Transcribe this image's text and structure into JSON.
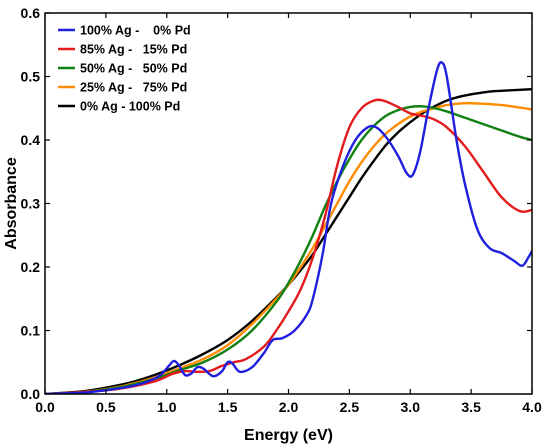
{
  "chart_data": {
    "type": "line",
    "title": "",
    "xlabel": "Energy (eV)",
    "ylabel": "Absorbance",
    "xlim": [
      0.0,
      4.0
    ],
    "ylim": [
      0.0,
      0.6
    ],
    "xticks": [
      "0.0",
      "0.5",
      "1.0",
      "1.5",
      "2.0",
      "2.5",
      "3.0",
      "3.5",
      "4.0"
    ],
    "yticks": [
      "0.0",
      "0.1",
      "0.2",
      "0.3",
      "0.4",
      "0.5",
      "0.6"
    ],
    "grid": false,
    "legend_position": "top-left",
    "series": [
      {
        "name": "100% Ag -    0% Pd",
        "color": "#1f1fdf",
        "points": [
          [
            0,
            0
          ],
          [
            0.3,
            0.002
          ],
          [
            0.5,
            0.006
          ],
          [
            0.7,
            0.012
          ],
          [
            0.85,
            0.02
          ],
          [
            0.95,
            0.03
          ],
          [
            1.02,
            0.045
          ],
          [
            1.06,
            0.052
          ],
          [
            1.1,
            0.045
          ],
          [
            1.15,
            0.03
          ],
          [
            1.2,
            0.032
          ],
          [
            1.25,
            0.042
          ],
          [
            1.3,
            0.04
          ],
          [
            1.38,
            0.028
          ],
          [
            1.45,
            0.035
          ],
          [
            1.5,
            0.05
          ],
          [
            1.54,
            0.048
          ],
          [
            1.6,
            0.035
          ],
          [
            1.7,
            0.042
          ],
          [
            1.8,
            0.065
          ],
          [
            1.87,
            0.085
          ],
          [
            1.95,
            0.088
          ],
          [
            2.05,
            0.1
          ],
          [
            2.15,
            0.125
          ],
          [
            2.2,
            0.15
          ],
          [
            2.28,
            0.22
          ],
          [
            2.35,
            0.3
          ],
          [
            2.45,
            0.36
          ],
          [
            2.55,
            0.4
          ],
          [
            2.65,
            0.42
          ],
          [
            2.72,
            0.42
          ],
          [
            2.8,
            0.405
          ],
          [
            2.9,
            0.375
          ],
          [
            2.97,
            0.348
          ],
          [
            3.02,
            0.345
          ],
          [
            3.08,
            0.38
          ],
          [
            3.15,
            0.45
          ],
          [
            3.22,
            0.51
          ],
          [
            3.26,
            0.522
          ],
          [
            3.3,
            0.5
          ],
          [
            3.38,
            0.4
          ],
          [
            3.45,
            0.33
          ],
          [
            3.55,
            0.26
          ],
          [
            3.65,
            0.23
          ],
          [
            3.75,
            0.222
          ],
          [
            3.85,
            0.21
          ],
          [
            3.92,
            0.202
          ],
          [
            3.97,
            0.215
          ],
          [
            4.0,
            0.225
          ]
        ]
      },
      {
        "name": "85% Ag -   15% Pd",
        "color": "#e31a1c",
        "points": [
          [
            0,
            0
          ],
          [
            0.3,
            0.003
          ],
          [
            0.6,
            0.008
          ],
          [
            0.9,
            0.02
          ],
          [
            1.05,
            0.032
          ],
          [
            1.15,
            0.036
          ],
          [
            1.25,
            0.035
          ],
          [
            1.35,
            0.036
          ],
          [
            1.45,
            0.044
          ],
          [
            1.55,
            0.05
          ],
          [
            1.65,
            0.055
          ],
          [
            1.8,
            0.075
          ],
          [
            1.9,
            0.1
          ],
          [
            2.0,
            0.13
          ],
          [
            2.1,
            0.165
          ],
          [
            2.2,
            0.215
          ],
          [
            2.3,
            0.28
          ],
          [
            2.4,
            0.36
          ],
          [
            2.5,
            0.42
          ],
          [
            2.6,
            0.45
          ],
          [
            2.7,
            0.462
          ],
          [
            2.78,
            0.462
          ],
          [
            2.9,
            0.452
          ],
          [
            3.0,
            0.442
          ],
          [
            3.1,
            0.438
          ],
          [
            3.2,
            0.432
          ],
          [
            3.3,
            0.42
          ],
          [
            3.45,
            0.39
          ],
          [
            3.6,
            0.35
          ],
          [
            3.75,
            0.31
          ],
          [
            3.9,
            0.288
          ],
          [
            4.0,
            0.29
          ]
        ]
      },
      {
        "name": "50% Ag -   50% Pd",
        "color": "#108010",
        "points": [
          [
            0,
            0
          ],
          [
            0.3,
            0.003
          ],
          [
            0.6,
            0.01
          ],
          [
            0.9,
            0.024
          ],
          [
            1.1,
            0.037
          ],
          [
            1.3,
            0.05
          ],
          [
            1.5,
            0.07
          ],
          [
            1.7,
            0.1
          ],
          [
            1.9,
            0.145
          ],
          [
            2.0,
            0.175
          ],
          [
            2.1,
            0.21
          ],
          [
            2.2,
            0.25
          ],
          [
            2.3,
            0.295
          ],
          [
            2.4,
            0.335
          ],
          [
            2.5,
            0.37
          ],
          [
            2.6,
            0.4
          ],
          [
            2.7,
            0.422
          ],
          [
            2.8,
            0.438
          ],
          [
            2.9,
            0.447
          ],
          [
            3.0,
            0.452
          ],
          [
            3.1,
            0.453
          ],
          [
            3.2,
            0.45
          ],
          [
            3.3,
            0.445
          ],
          [
            3.45,
            0.435
          ],
          [
            3.6,
            0.425
          ],
          [
            3.75,
            0.415
          ],
          [
            3.9,
            0.405
          ],
          [
            4.0,
            0.4
          ]
        ]
      },
      {
        "name": "25% Ag -   75% Pd",
        "color": "#ff8c00",
        "points": [
          [
            0,
            0
          ],
          [
            0.3,
            0.003
          ],
          [
            0.6,
            0.011
          ],
          [
            0.9,
            0.026
          ],
          [
            1.1,
            0.04
          ],
          [
            1.3,
            0.055
          ],
          [
            1.5,
            0.077
          ],
          [
            1.7,
            0.11
          ],
          [
            1.9,
            0.15
          ],
          [
            2.0,
            0.172
          ],
          [
            2.1,
            0.2
          ],
          [
            2.2,
            0.23
          ],
          [
            2.3,
            0.265
          ],
          [
            2.4,
            0.3
          ],
          [
            2.5,
            0.335
          ],
          [
            2.6,
            0.365
          ],
          [
            2.7,
            0.39
          ],
          [
            2.8,
            0.41
          ],
          [
            2.9,
            0.425
          ],
          [
            3.0,
            0.437
          ],
          [
            3.1,
            0.445
          ],
          [
            3.2,
            0.45
          ],
          [
            3.3,
            0.455
          ],
          [
            3.45,
            0.458
          ],
          [
            3.6,
            0.457
          ],
          [
            3.75,
            0.455
          ],
          [
            3.9,
            0.451
          ],
          [
            4.0,
            0.448
          ]
        ]
      },
      {
        "name": "0% Ag - 100% Pd",
        "color": "#000000",
        "points": [
          [
            0,
            0
          ],
          [
            0.3,
            0.004
          ],
          [
            0.5,
            0.01
          ],
          [
            0.7,
            0.018
          ],
          [
            0.9,
            0.03
          ],
          [
            1.1,
            0.045
          ],
          [
            1.3,
            0.063
          ],
          [
            1.5,
            0.085
          ],
          [
            1.7,
            0.115
          ],
          [
            1.9,
            0.152
          ],
          [
            2.0,
            0.172
          ],
          [
            2.1,
            0.195
          ],
          [
            2.2,
            0.22
          ],
          [
            2.3,
            0.25
          ],
          [
            2.4,
            0.28
          ],
          [
            2.5,
            0.31
          ],
          [
            2.6,
            0.34
          ],
          [
            2.7,
            0.367
          ],
          [
            2.8,
            0.392
          ],
          [
            2.9,
            0.412
          ],
          [
            3.0,
            0.428
          ],
          [
            3.1,
            0.442
          ],
          [
            3.2,
            0.453
          ],
          [
            3.3,
            0.462
          ],
          [
            3.4,
            0.468
          ],
          [
            3.5,
            0.472
          ],
          [
            3.6,
            0.475
          ],
          [
            3.7,
            0.477
          ],
          [
            3.8,
            0.478
          ],
          [
            3.9,
            0.479
          ],
          [
            4.0,
            0.48
          ]
        ]
      }
    ]
  }
}
